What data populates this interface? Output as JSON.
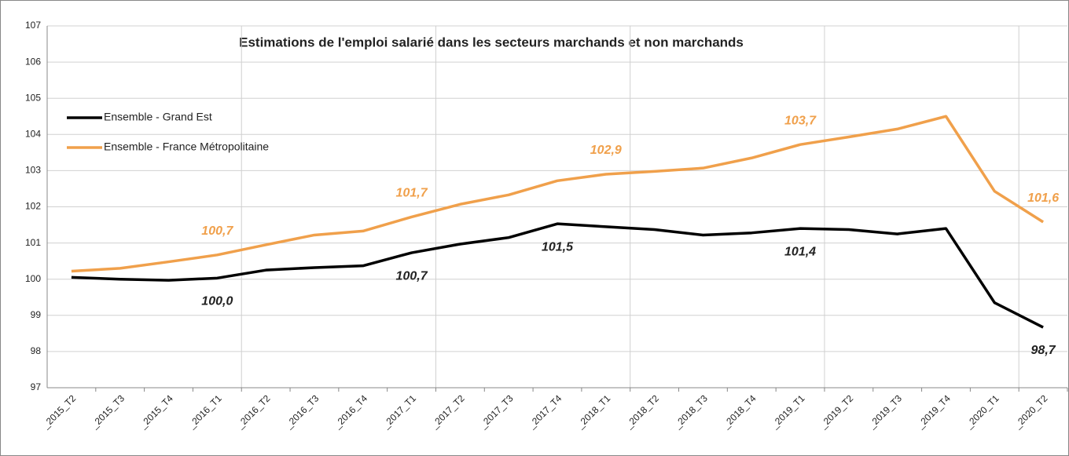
{
  "chart_data": {
    "type": "line",
    "title": "Estimations de l'emploi salarié dans les secteurs marchands et non marchands",
    "categories": [
      "_2015_T2",
      "_2015_T3",
      "_2015_T4",
      "_2016_T1",
      "_2016_T2",
      "_2016_T3",
      "_2016_T4",
      "_2017_T1",
      "_2017_T2",
      "_2017_T3",
      "_2017_T4",
      "_2018_T1",
      "_2018_T2",
      "_2018_T3",
      "_2018_T4",
      "_2019_T1",
      "_2019_T2",
      "_2019_T3",
      "_2019_T4",
      "_2020_T1",
      "_2020_T2"
    ],
    "series": [
      {
        "name": "Ensemble - Grand Est",
        "color": "#000000",
        "values": [
          100.05,
          100.0,
          99.97,
          100.03,
          100.25,
          100.32,
          100.37,
          100.73,
          100.97,
          101.15,
          101.53,
          101.45,
          101.37,
          101.22,
          101.28,
          101.4,
          101.37,
          101.25,
          101.4,
          99.35,
          98.67
        ],
        "value_labels": [
          null,
          null,
          null,
          "100,0",
          null,
          null,
          null,
          "100,7",
          null,
          null,
          "101,5",
          null,
          null,
          null,
          null,
          "101,4",
          null,
          null,
          null,
          null,
          "98,7"
        ]
      },
      {
        "name": "Ensemble - France Métropolitaine",
        "color": "#f0a04b",
        "values": [
          100.22,
          100.3,
          100.48,
          100.67,
          100.95,
          101.22,
          101.33,
          101.72,
          102.07,
          102.33,
          102.72,
          102.9,
          102.98,
          103.07,
          103.35,
          103.72,
          103.93,
          104.15,
          104.5,
          102.43,
          101.58
        ],
        "value_labels": [
          null,
          null,
          null,
          "100,7",
          null,
          null,
          null,
          "101,7",
          null,
          null,
          null,
          "102,9",
          null,
          null,
          null,
          "103,7",
          null,
          null,
          null,
          null,
          "101,6"
        ]
      }
    ],
    "ylim": [
      97,
      107
    ],
    "yticks": [
      97,
      98,
      99,
      100,
      101,
      102,
      103,
      104,
      105,
      106,
      107
    ],
    "grid": true,
    "legend": "upper left"
  }
}
